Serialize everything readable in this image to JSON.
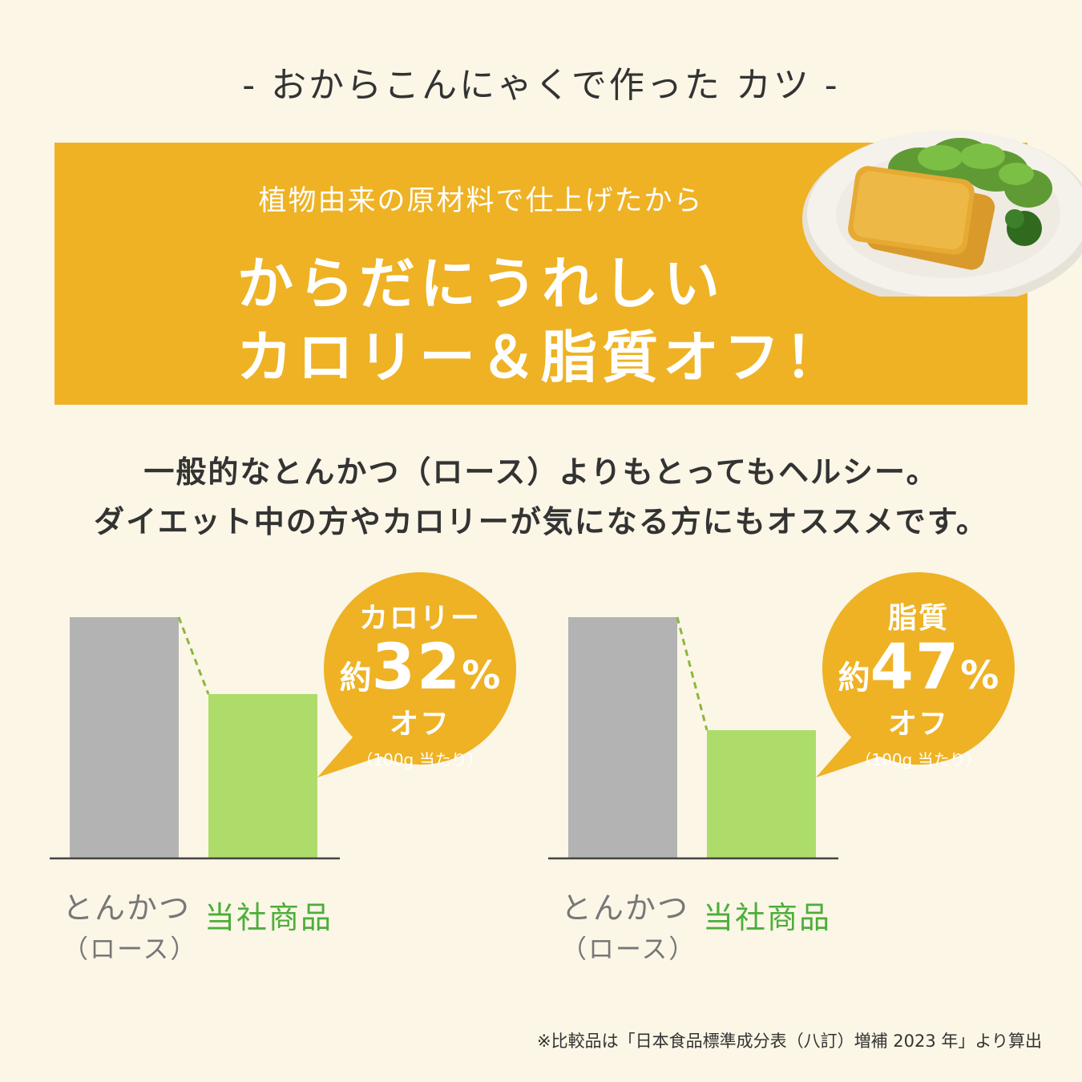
{
  "header": {
    "title": "-  おからこんにゃくで作った カツ  -"
  },
  "banner": {
    "subtitle": "植物由来の原材料で仕上げたから",
    "headline_line1": "からだにうれしい",
    "headline_line2": "カロリー＆脂質オフ！"
  },
  "description": {
    "line1": "一般的なとんかつ（ロース）よりもとってもヘルシー。",
    "line2": "ダイエット中の方やカロリーが気になる方にもオススメです。"
  },
  "colors": {
    "accent": "#eeb224",
    "baseline_bar": "#b3b3b3",
    "product_bar": "#addc6b",
    "product_text": "#4cae3b"
  },
  "chart_data": [
    {
      "type": "bar",
      "categories": [
        "とんかつ（ロース）",
        "当社商品"
      ],
      "category_labels": {
        "main": "とんかつ",
        "sub": "（ロース）",
        "product": "当社商品"
      },
      "values": [
        100,
        68
      ],
      "unit": "%",
      "callout": {
        "name": "カロリー",
        "prefix": "約",
        "value": "32",
        "suffix": "%",
        "off": "オフ",
        "per": "（100g 当たり）"
      }
    },
    {
      "type": "bar",
      "categories": [
        "とんかつ（ロース）",
        "当社商品"
      ],
      "category_labels": {
        "main": "とんかつ",
        "sub": "（ロース）",
        "product": "当社商品"
      },
      "values": [
        100,
        53
      ],
      "unit": "%",
      "callout": {
        "name": "脂質",
        "prefix": "約",
        "value": "47",
        "suffix": "%",
        "off": "オフ",
        "per": "（100g 当たり）"
      }
    }
  ],
  "footnote": "※比較品は「日本食品標準成分表（八訂）増補 2023 年」より算出"
}
